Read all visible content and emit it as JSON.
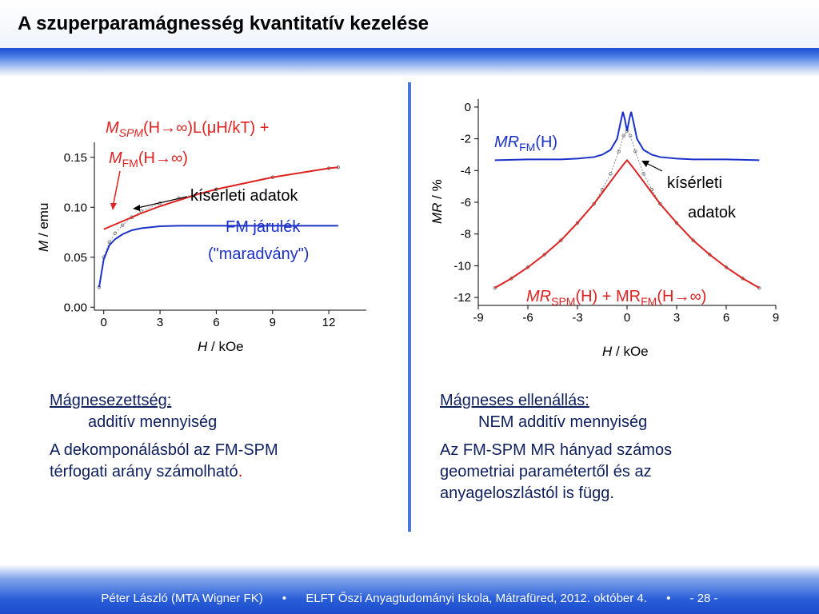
{
  "title": "A szuperparamágnesség kvantitatív kezelése",
  "colors": {
    "red": "#dd2222",
    "blue": "#1b31c8",
    "data": "#888888",
    "accent": "#4a78d8"
  },
  "chart_data": [
    {
      "type": "line",
      "xlabel_italic": "H",
      "xlabel_rest": " / kOe",
      "ylabel_italic": "M",
      "ylabel_rest": " / emu",
      "xlim": [
        -0.5,
        14
      ],
      "ylim": [
        -0.003,
        0.165
      ],
      "xticks": [
        "0",
        "3",
        "6",
        "9",
        "12"
      ],
      "yticks": [
        "0.00",
        "0.05",
        "0.10",
        "0.15"
      ],
      "series": [
        {
          "name": "MSPM(H→∞)L(μH/kT) + MFM(H→∞)",
          "color": "#dd2222",
          "x": [
            0,
            1,
            2,
            3,
            4,
            5,
            6,
            7,
            8,
            9,
            10,
            11,
            12,
            12.5
          ],
          "y": [
            0.078,
            0.086,
            0.094,
            0.101,
            0.107,
            0.113,
            0.118,
            0.122,
            0.126,
            0.13,
            0.133,
            0.136,
            0.139,
            0.14
          ]
        },
        {
          "name": "FM járulék (\"maradvány\")",
          "color": "#1b31c8",
          "x": [
            -0.25,
            0,
            0.3,
            0.6,
            1,
            1.5,
            2,
            3,
            4,
            6,
            9,
            12,
            12.5
          ],
          "y": [
            0.02,
            0.048,
            0.062,
            0.068,
            0.073,
            0.077,
            0.079,
            0.081,
            0.0815,
            0.0815,
            0.0815,
            0.0815,
            0.0815
          ]
        },
        {
          "name": "kísérleti adatok",
          "color": "#888888",
          "x": [
            -0.25,
            0,
            0.3,
            0.6,
            1,
            1.5,
            2,
            3,
            4,
            6,
            9,
            12,
            12.5
          ],
          "y": [
            0.02,
            0.05,
            0.065,
            0.074,
            0.082,
            0.09,
            0.096,
            0.104,
            0.109,
            0.118,
            0.13,
            0.139,
            0.14
          ]
        }
      ]
    },
    {
      "type": "line",
      "xlabel_italic": "H",
      "xlabel_rest": " / kOe",
      "ylabel_italic": "MR",
      "ylabel_rest": " / %",
      "xlim": [
        -9,
        9
      ],
      "ylim": [
        -12.5,
        0.5
      ],
      "xticks": [
        "-9",
        "-6",
        "-3",
        "0",
        "3",
        "6",
        "9"
      ],
      "yticks": [
        "0",
        "-2",
        "-4",
        "-6",
        "-8",
        "-10",
        "-12"
      ],
      "series": [
        {
          "name": "MRSPM(H) + MRFM(H→∞)",
          "color": "#dd2222",
          "x": [
            -8,
            -7,
            -6,
            -5,
            -4,
            -3,
            -2,
            -1.5,
            -1,
            -0.5,
            -0.2,
            0,
            0.2,
            0.5,
            1,
            1.5,
            2,
            3,
            4,
            5,
            6,
            7,
            8
          ],
          "y": [
            -11.4,
            -10.8,
            -10.1,
            -9.3,
            -8.4,
            -7.3,
            -6.1,
            -5.4,
            -4.7,
            -4.0,
            -3.6,
            -3.35,
            -3.6,
            -4.0,
            -4.7,
            -5.4,
            -6.1,
            -7.3,
            -8.4,
            -9.3,
            -10.1,
            -10.8,
            -11.4
          ]
        },
        {
          "name": "MRFM(H)",
          "color": "#1b31c8",
          "x": [
            -8,
            -6,
            -4,
            -3,
            -2,
            -1.5,
            -1,
            -0.6,
            -0.4,
            -0.25,
            -0.15,
            0,
            0.15,
            0.25,
            0.4,
            0.6,
            1,
            1.5,
            2,
            3,
            4,
            6,
            8
          ],
          "y": [
            -3.35,
            -3.3,
            -3.3,
            -3.25,
            -3.15,
            -3.0,
            -2.7,
            -2.0,
            -1.0,
            -0.3,
            -0.7,
            -1.5,
            -0.7,
            -0.3,
            -1.0,
            -2.0,
            -2.7,
            -3.0,
            -3.15,
            -3.25,
            -3.3,
            -3.3,
            -3.35
          ]
        },
        {
          "name": "kísérleti adatok",
          "color": "#888888",
          "x": [
            -8,
            -7,
            -6,
            -5,
            -4,
            -3,
            -2,
            -1.5,
            -1,
            -0.5,
            -0.2,
            0,
            0.2,
            0.5,
            1,
            1.5,
            2,
            3,
            4,
            5,
            6,
            7,
            8
          ],
          "y": [
            -11.4,
            -10.8,
            -10.1,
            -9.3,
            -8.4,
            -7.3,
            -6.1,
            -5.2,
            -4.2,
            -2.8,
            -1.8,
            -1.5,
            -1.8,
            -2.8,
            -4.2,
            -5.2,
            -6.1,
            -7.3,
            -8.4,
            -9.3,
            -10.1,
            -10.8,
            -11.4
          ]
        }
      ]
    }
  ],
  "annotations": {
    "spm_label_line1": "M",
    "spm_sub": "SPM",
    "spm_rest1": "(H→∞)L(μH/kT) +",
    "spm_label_line2": "M",
    "fm_sub": "FM",
    "spm_rest2": "(H→∞)",
    "left_exp": "kísérleti adatok",
    "left_fm_line1": "FM járulék",
    "left_fm_line2": "(\"maradvány\")",
    "mr_fm_main": "MR",
    "mr_fm_sub": "FM",
    "mr_fm_rest": "(H)",
    "right_exp_line1": "kísérleti",
    "right_exp_line2": "adatok",
    "mr_spm_main": "MR",
    "mr_spm_sub": "SPM",
    "mr_spm_mid": "(H) + MR",
    "mr_spm_sub2": "FM",
    "mr_spm_rest": "(H→∞)"
  },
  "left_text": {
    "heading": "Mágnesezettség:",
    "line2": "additív mennyiség",
    "line3": "A dekomponálásból az FM-SPM",
    "line4": "térfogati arány számolható",
    "dot": "."
  },
  "right_text": {
    "heading": "Mágneses ellenállás:",
    "line2": "NEM additív mennyiség",
    "line3": "Az FM-SPM MR hányad számos",
    "line4": "geometriai paramétertől és az",
    "line5": "anyageloszlástól is függ."
  },
  "footer": {
    "author": "Péter László (MTA Wigner FK)",
    "sep1": "•",
    "event": "ELFT Őszi Anyagtudományi Iskola, Mátrafüred, 2012. október 4.",
    "sep2": "•",
    "page": "- 28 -"
  }
}
